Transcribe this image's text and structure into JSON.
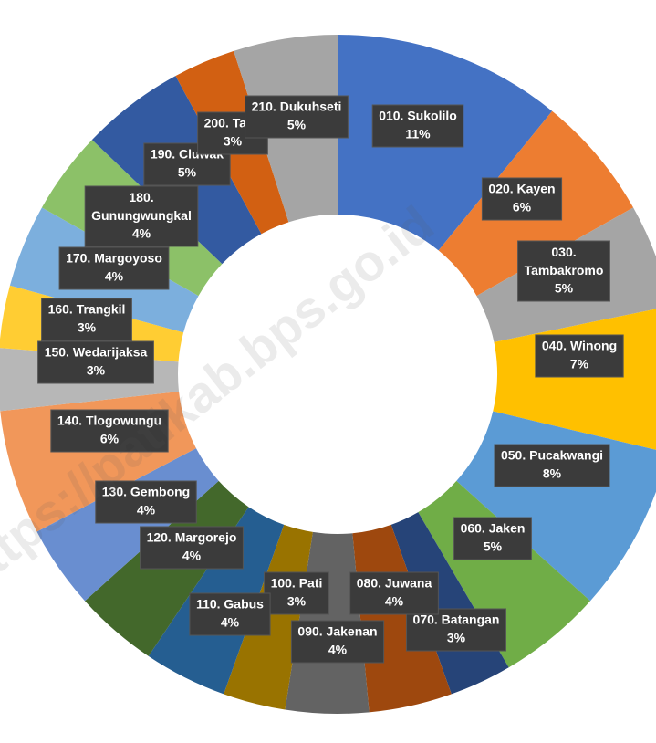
{
  "chart_data": {
    "type": "donut",
    "watermark": "https://patikab.bps.go.id",
    "categories": [
      "010. Sukolilo",
      "020. Kayen",
      "030. Tambakromo",
      "040. Winong",
      "050. Pucakwangi",
      "060. Jaken",
      "070. Batangan",
      "080. Juwana",
      "090. Jakenan",
      "100. Pati",
      "110. Gabus",
      "120. Margorejo",
      "130. Gembong",
      "140. Tlogowungu",
      "150. Wedarijaksa",
      "160. Trangkil",
      "170. Margoyoso",
      "180. Gunungwungkal",
      "190. Cluwak",
      "200. Tayu",
      "210. Dukuhseti"
    ],
    "values": [
      11,
      6,
      5,
      7,
      8,
      5,
      3,
      4,
      4,
      3,
      4,
      4,
      4,
      6,
      3,
      3,
      4,
      4,
      5,
      3,
      5
    ],
    "value_labels": [
      "11%",
      "6%",
      "5%",
      "7%",
      "8%",
      "5%",
      "3%",
      "4%",
      "4%",
      "3%",
      "4%",
      "4%",
      "4%",
      "6%",
      "3%",
      "3%",
      "4%",
      "4%",
      "5%",
      "3%",
      "5%"
    ],
    "colors": [
      "#4472c4",
      "#ed7d31",
      "#a5a5a5",
      "#ffc000",
      "#5b9bd5",
      "#70ad47",
      "#264478",
      "#9e480e",
      "#636363",
      "#997300",
      "#255e91",
      "#43682b",
      "#698ed0",
      "#f1975a",
      "#b7b7b7",
      "#ffcd33",
      "#7cafdd",
      "#8cc168",
      "#335aa1",
      "#d26012",
      "#a5a5a5"
    ]
  }
}
